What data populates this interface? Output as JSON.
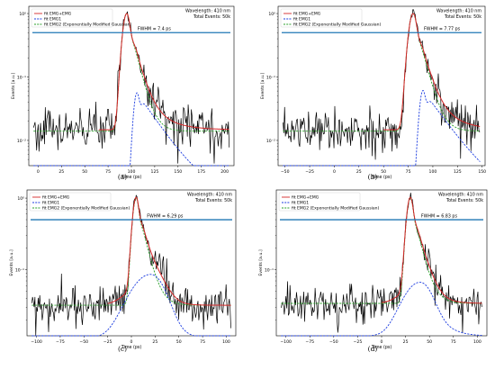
{
  "figure": {
    "panels": [
      {
        "caption": "(a)"
      },
      {
        "caption": "(b)"
      },
      {
        "caption": "(c)"
      },
      {
        "caption": "(d)"
      }
    ]
  },
  "colors": {
    "data": "#000000",
    "fit_total": "#d62728",
    "fit_emg1": "#1f3fe0",
    "fit_emg2": "#2ca02c",
    "fwhm_line": "#1f77b4"
  },
  "chart_data": [
    {
      "type": "line",
      "scale_y": "log",
      "xlabel": "Time (ps)",
      "ylabel": "Events [a.u.]",
      "xlim": [
        -10,
        210
      ],
      "ylim": [
        0.004,
        1.3
      ],
      "xticks": [
        0,
        25,
        50,
        75,
        100,
        125,
        150,
        175,
        200
      ],
      "xtick_labels": [
        "0",
        "25",
        "50",
        "75",
        "100",
        "125",
        "150",
        "175",
        "200"
      ],
      "yticks": [
        0.01,
        0.1,
        1
      ],
      "ytick_labels": [
        "10⁻²",
        "10⁻¹",
        "10⁰"
      ],
      "legend": [
        "fit EMG+EMG",
        "fit EMG1",
        "fit EMG2 (Exponentially Modified Gaussian)"
      ],
      "legend_position": "top-left",
      "annotations": [
        "Wavelength: 410 nm",
        "Total Events: 50k",
        "FWHM = 7.4 ps"
      ],
      "fwhm_level": 0.5,
      "baseline": 0.014,
      "peak_time": 95,
      "emg1": {
        "amp": 0.055,
        "mu": 106,
        "sigma": 3,
        "tau": 20,
        "floor": 0.0013
      },
      "emg2": {
        "sigma": 3.7,
        "tau": 7
      },
      "noise_amp": 0.22
    },
    {
      "type": "line",
      "scale_y": "log",
      "xlabel": "Time (ps)",
      "ylabel": "Events [a.u.]",
      "xlim": [
        -57,
        153
      ],
      "ylim": [
        0.004,
        1.3
      ],
      "xticks": [
        -50,
        -25,
        0,
        25,
        50,
        75,
        100,
        125,
        150
      ],
      "xtick_labels": [
        "−50",
        "−25",
        "0",
        "25",
        "50",
        "75",
        "100",
        "125",
        "150"
      ],
      "yticks": [
        0.01,
        0.1,
        1
      ],
      "ytick_labels": [
        "10⁻²",
        "10⁻¹",
        "10⁰"
      ],
      "legend": [
        "fit EMG+EMG",
        "fit EMG1",
        "fit EMG2 (Exponentially Modified Gaussian)"
      ],
      "legend_position": "top-left",
      "annotations": [
        "Wavelength: 410 nm",
        "Total Events: 50k",
        "FWHM = 7.77 ps"
      ],
      "fwhm_level": 0.5,
      "baseline": 0.014,
      "peak_time": 80,
      "emg1": {
        "amp": 0.06,
        "mu": 90,
        "sigma": 3,
        "tau": 20,
        "floor": 0.0013
      },
      "emg2": {
        "sigma": 3.9,
        "tau": 7
      },
      "noise_amp": 0.22
    },
    {
      "type": "line",
      "scale_y": "log",
      "xlabel": "Time (ps)",
      "ylabel": "Events [a.u.]",
      "xlim": [
        -110,
        110
      ],
      "ylim": [
        0.012,
        1.3
      ],
      "xticks": [
        -100,
        -75,
        -50,
        -25,
        0,
        25,
        50,
        75,
        100
      ],
      "xtick_labels": [
        "−100",
        "−75",
        "−50",
        "−25",
        "0",
        "25",
        "50",
        "75",
        "100"
      ],
      "yticks": [
        0.1,
        1
      ],
      "ytick_labels": [
        "10⁻¹",
        "10⁰"
      ],
      "legend": [
        "fit EMG+EMG",
        "fit EMG1",
        "fit EMG2 (Exponentially Modified Gaussian)"
      ],
      "legend_position": "top-left",
      "annotations": [
        "Wavelength: 410 nm",
        "Total Events: 50k",
        "FWHM = 6.29 ps"
      ],
      "fwhm_level": 0.5,
      "baseline": 0.032,
      "peak_time": 5,
      "emg1": {
        "amp": 0.075,
        "mu": 20,
        "sigma": 18,
        "tau": 10,
        "floor": 0.0
      },
      "emg2": {
        "sigma": 3.2,
        "tau": 7
      },
      "noise_amp": 0.18
    },
    {
      "type": "line",
      "scale_y": "log",
      "xlabel": "Time (ps)",
      "ylabel": "Events [a.u.]",
      "xlim": [
        -110,
        110
      ],
      "ylim": [
        0.012,
        1.3
      ],
      "xticks": [
        -100,
        -75,
        -50,
        -25,
        0,
        25,
        50,
        75,
        100
      ],
      "xtick_labels": [
        "−100",
        "−75",
        "−50",
        "−25",
        "0",
        "25",
        "50",
        "75",
        "100"
      ],
      "yticks": [
        0.1
      ],
      "ytick_labels": [
        "10⁻¹"
      ],
      "legend": [
        "fit EMG+EMG",
        "fit EMG1",
        "fit EMG2 (Exponentially Modified Gaussian)"
      ],
      "legend_position": "top-left",
      "annotations": [
        "Wavelength: 410 nm",
        "Total Events: 50k",
        "FWHM = 6.83 ps"
      ],
      "fwhm_level": 0.5,
      "baseline": 0.034,
      "peak_time": 30,
      "emg1": {
        "amp": 0.055,
        "mu": 40,
        "sigma": 15,
        "tau": 12,
        "floor": 0.0
      },
      "emg2": {
        "sigma": 3.4,
        "tau": 7
      },
      "noise_amp": 0.18
    }
  ]
}
